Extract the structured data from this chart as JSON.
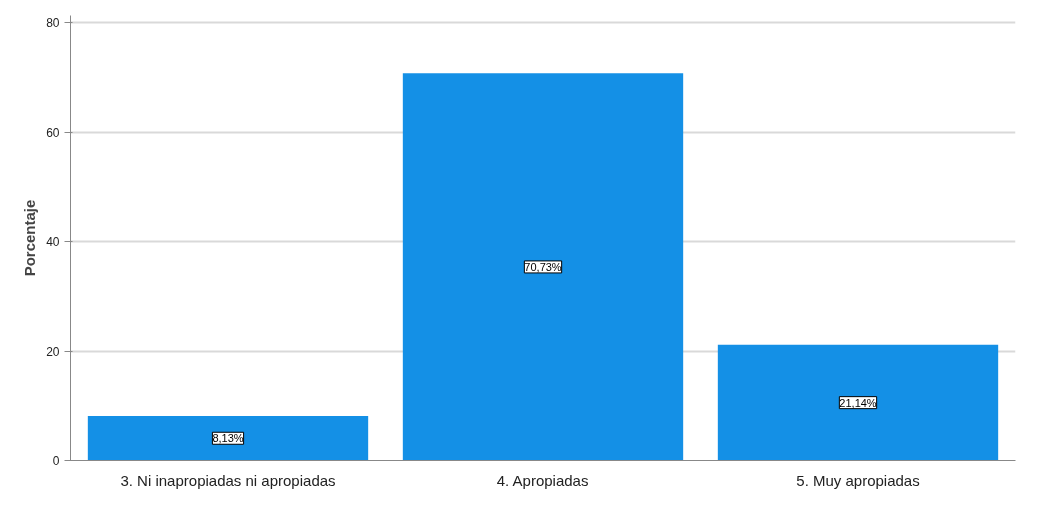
{
  "chart_data": {
    "type": "bar",
    "ylabel": "Porcentaje",
    "categories": [
      "3. Ni inapropiadas ni apropiadas",
      "4. Apropiadas",
      "5. Muy apropiadas"
    ],
    "values": [
      8.13,
      70.73,
      21.14
    ],
    "value_labels": [
      "8,13%",
      "70,73%",
      "21,14%"
    ],
    "color": "#1490e6",
    "ylim": [
      0,
      81.3
    ],
    "yticks": [
      0,
      20,
      40,
      60,
      80
    ],
    "grid": "y"
  }
}
